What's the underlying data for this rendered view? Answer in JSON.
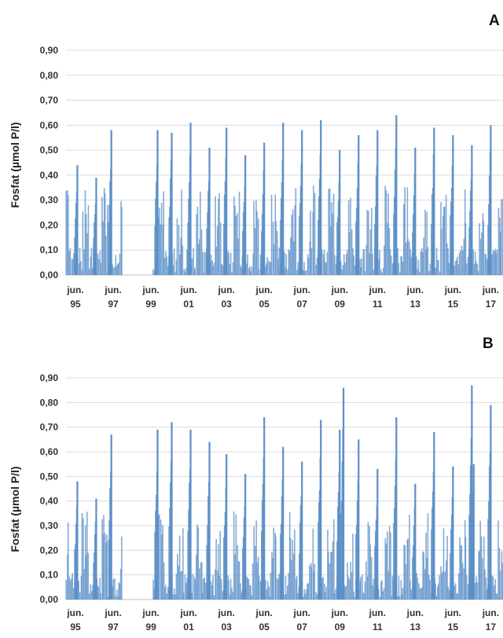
{
  "chart_data": [
    {
      "panel_label": "A",
      "type": "bar",
      "ylabel": "Fosfat (µmol P/l)",
      "ylim": [
        0,
        0.9
      ],
      "yticks": [
        "0,00",
        "0,10",
        "0,20",
        "0,30",
        "0,40",
        "0,50",
        "0,60",
        "0,70",
        "0,80",
        "0,90"
      ],
      "xlim": [
        1995.0,
        2018.15
      ],
      "xticks": [
        {
          "x": 1995.5,
          "month": "jun.",
          "year": "95"
        },
        {
          "x": 1997.5,
          "month": "jun.",
          "year": "97"
        },
        {
          "x": 1999.5,
          "month": "jun.",
          "year": "99"
        },
        {
          "x": 2001.5,
          "month": "jun.",
          "year": "01"
        },
        {
          "x": 2003.5,
          "month": "jun.",
          "year": "03"
        },
        {
          "x": 2005.5,
          "month": "jun.",
          "year": "05"
        },
        {
          "x": 2007.5,
          "month": "jun.",
          "year": "07"
        },
        {
          "x": 2009.5,
          "month": "jun.",
          "year": "09"
        },
        {
          "x": 2011.5,
          "month": "jun.",
          "year": "11"
        },
        {
          "x": 2013.5,
          "month": "jun.",
          "year": "13"
        },
        {
          "x": 2015.5,
          "month": "jun.",
          "year": "15"
        },
        {
          "x": 2017.5,
          "month": "jun.",
          "year": "17"
        }
      ],
      "grid": true,
      "color": "#5b8fc7",
      "peaks": [
        [
          1995.6,
          0.44
        ],
        [
          1996.6,
          0.39
        ],
        [
          1997.4,
          0.58
        ],
        [
          1999.85,
          0.58
        ],
        [
          2000.6,
          0.57
        ],
        [
          2001.6,
          0.61
        ],
        [
          2002.6,
          0.51
        ],
        [
          2003.5,
          0.59
        ],
        [
          2004.5,
          0.48
        ],
        [
          2005.5,
          0.53
        ],
        [
          2006.5,
          0.61
        ],
        [
          2007.5,
          0.58
        ],
        [
          2008.5,
          0.62
        ],
        [
          2009.5,
          0.5
        ],
        [
          2010.5,
          0.56
        ],
        [
          2011.5,
          0.58
        ],
        [
          2012.5,
          0.64
        ],
        [
          2013.5,
          0.51
        ],
        [
          2014.5,
          0.59
        ],
        [
          2015.5,
          0.56
        ],
        [
          2016.5,
          0.52
        ],
        [
          2017.5,
          0.6
        ]
      ],
      "gaps": [
        [
          1998.0,
          1999.6
        ]
      ]
    },
    {
      "panel_label": "B",
      "type": "bar",
      "ylabel": "Fosfat (µmol P/l)",
      "ylim": [
        0,
        0.9
      ],
      "yticks": [
        "0,00",
        "0,10",
        "0,20",
        "0,30",
        "0,40",
        "0,50",
        "0,60",
        "0,70",
        "0,80",
        "0,90"
      ],
      "xlim": [
        1995.0,
        2018.15
      ],
      "xticks": [
        {
          "x": 1995.5,
          "month": "jun.",
          "year": "95"
        },
        {
          "x": 1997.5,
          "month": "jun.",
          "year": "97"
        },
        {
          "x": 1999.5,
          "month": "jun.",
          "year": "99"
        },
        {
          "x": 2001.5,
          "month": "jun.",
          "year": "01"
        },
        {
          "x": 2003.5,
          "month": "jun.",
          "year": "03"
        },
        {
          "x": 2005.5,
          "month": "jun.",
          "year": "05"
        },
        {
          "x": 2007.5,
          "month": "jun.",
          "year": "07"
        },
        {
          "x": 2009.5,
          "month": "jun.",
          "year": "09"
        },
        {
          "x": 2011.5,
          "month": "jun.",
          "year": "11"
        },
        {
          "x": 2013.5,
          "month": "jun.",
          "year": "13"
        },
        {
          "x": 2015.5,
          "month": "jun.",
          "year": "15"
        },
        {
          "x": 2017.5,
          "month": "jun.",
          "year": "17"
        }
      ],
      "grid": true,
      "color": "#5b8fc7",
      "peaks": [
        [
          1995.6,
          0.48
        ],
        [
          1996.6,
          0.41
        ],
        [
          1997.4,
          0.67
        ],
        [
          1999.85,
          0.69
        ],
        [
          2000.6,
          0.72
        ],
        [
          2001.6,
          0.69
        ],
        [
          2002.6,
          0.64
        ],
        [
          2003.5,
          0.59
        ],
        [
          2004.5,
          0.51
        ],
        [
          2005.5,
          0.74
        ],
        [
          2006.5,
          0.62
        ],
        [
          2007.5,
          0.56
        ],
        [
          2008.5,
          0.73
        ],
        [
          2009.5,
          0.69
        ],
        [
          2009.7,
          0.86
        ],
        [
          2010.5,
          0.65
        ],
        [
          2011.5,
          0.53
        ],
        [
          2012.5,
          0.74
        ],
        [
          2013.5,
          0.47
        ],
        [
          2014.5,
          0.68
        ],
        [
          2015.5,
          0.54
        ],
        [
          2016.5,
          0.87
        ],
        [
          2016.6,
          0.55
        ],
        [
          2017.5,
          0.79
        ]
      ],
      "gaps": [
        [
          1998.0,
          1999.6
        ]
      ]
    }
  ]
}
